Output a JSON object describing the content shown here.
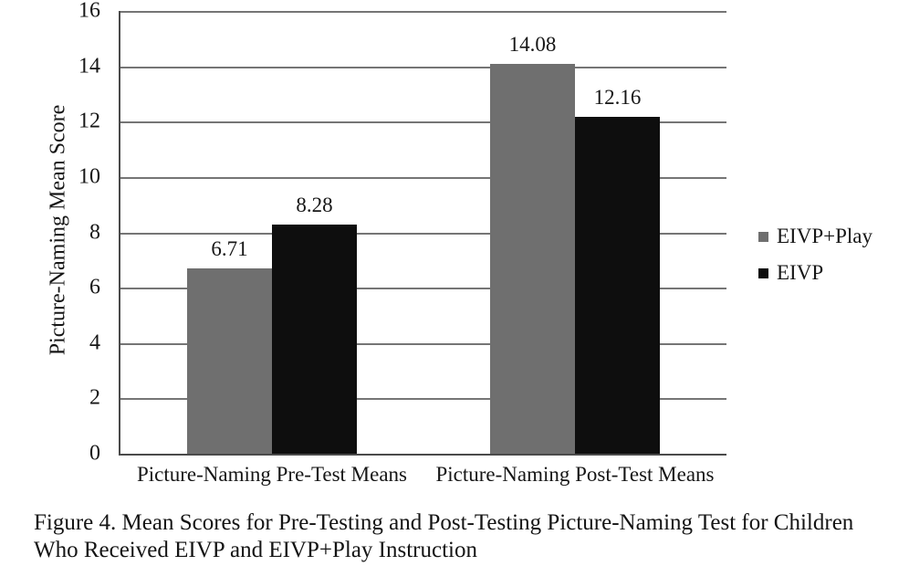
{
  "figure": {
    "caption_line1": "Figure 4. Mean Scores for Pre-Testing and Post-Testing Picture-Naming Test for Children",
    "caption_line2": "Who Received EIVP and EIVP+Play Instruction"
  },
  "chart_data": {
    "type": "bar",
    "title": "",
    "xlabel": "",
    "ylabel": "Picture-Naming Mean Score",
    "categories": [
      "Picture-Naming Pre-Test Means",
      "Picture-Naming Post-Test Means"
    ],
    "series": [
      {
        "name": "EIVP+Play",
        "color": "#6f6f6f",
        "values": [
          6.71,
          14.08
        ],
        "value_labels": [
          "6.71",
          "14.08"
        ]
      },
      {
        "name": "EIVP",
        "color": "#0e0e0e",
        "values": [
          8.28,
          12.16
        ],
        "value_labels": [
          "8.28",
          "12.16"
        ]
      }
    ],
    "ylim": [
      0,
      16
    ],
    "yticks": [
      0,
      2,
      4,
      6,
      8,
      10,
      12,
      14,
      16
    ],
    "grid": true,
    "legend_position": "right",
    "colors": {
      "gridline": "#757575",
      "axis": "#4a4a4a"
    }
  }
}
